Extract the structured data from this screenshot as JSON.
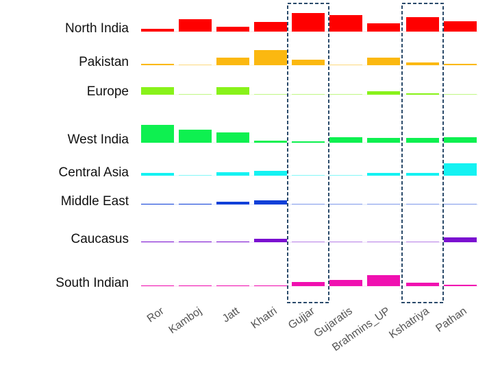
{
  "chart_data": {
    "type": "bar-grid",
    "categories": [
      "Ror",
      "Kamboj",
      "Jatt",
      "Khatri",
      "Gujjar",
      "Gujaratis",
      "Brahmins_UP",
      "Kshatriya",
      "Pathan"
    ],
    "ylim": [
      0,
      30
    ],
    "highlight_columns": [
      4,
      7
    ],
    "series": [
      {
        "name": "North India",
        "color": "#ff0000",
        "values": [
          4,
          18,
          7,
          14,
          27,
          24,
          12,
          21,
          15
        ]
      },
      {
        "name": "Pakistan",
        "color": "#fbb810",
        "values": [
          2,
          0.5,
          11,
          22,
          8,
          0.5,
          11,
          4,
          2
        ]
      },
      {
        "name": "Europe",
        "color": "#88f21a",
        "values": [
          11,
          0.5,
          11,
          0.5,
          0.5,
          0.5,
          5,
          2,
          0.5
        ]
      },
      {
        "name": "West India",
        "color": "#0ef050",
        "values": [
          26,
          19,
          15,
          3,
          2,
          8,
          7,
          7,
          8
        ]
      },
      {
        "name": "Central Asia",
        "color": "#14f2f2",
        "values": [
          4,
          0.5,
          5,
          7,
          0.5,
          0.5,
          4,
          4,
          18
        ]
      },
      {
        "name": "Middle East",
        "color": "#1040d8",
        "values": [
          1,
          1,
          4,
          6,
          0.5,
          0.5,
          0.5,
          0.5,
          0.5
        ]
      },
      {
        "name": "Caucasus",
        "color": "#7a10d0",
        "values": [
          1,
          1,
          1,
          5,
          0.5,
          0.5,
          0.5,
          0.5,
          7
        ]
      },
      {
        "name": "South Indian",
        "color": "#f010b0",
        "values": [
          1,
          1,
          1,
          1,
          6,
          9,
          16,
          5,
          2
        ]
      }
    ]
  }
}
